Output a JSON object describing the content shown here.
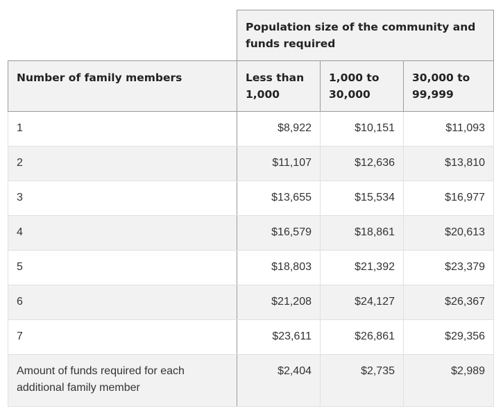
{
  "table": {
    "group_header": "Population size of the community and funds required",
    "headers": [
      "Number of family members",
      "Less than 1,000",
      "1,000 to 30,000",
      "30,000 to 99,999"
    ],
    "rows": [
      [
        "1",
        "$8,922",
        "$10,151",
        "$11,093"
      ],
      [
        "2",
        "$11,107",
        "$12,636",
        "$13,810"
      ],
      [
        "3",
        "$13,655",
        "$15,534",
        "$16,977"
      ],
      [
        "4",
        "$16,579",
        "$18,861",
        "$20,613"
      ],
      [
        "5",
        "$18,803",
        "$21,392",
        "$23,379"
      ],
      [
        "6",
        "$21,208",
        "$24,127",
        "$26,367"
      ],
      [
        "7",
        "$23,611",
        "$26,861",
        "$29,356"
      ],
      [
        "Amount of funds required for each additional family member",
        "$2,404",
        "$2,735",
        "$2,989"
      ]
    ]
  }
}
